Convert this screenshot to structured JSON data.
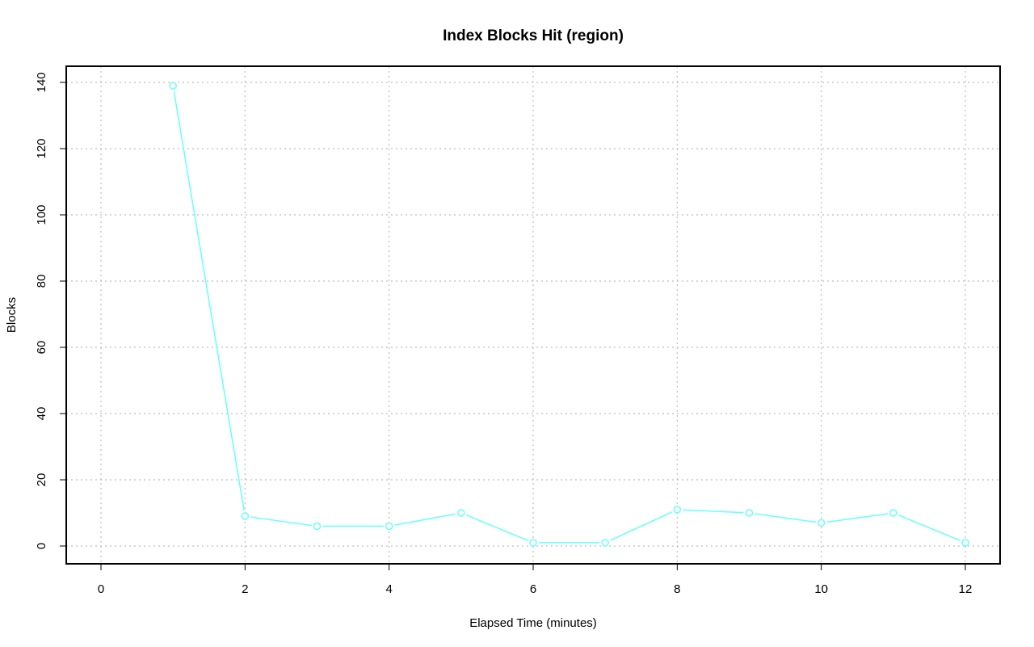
{
  "chart_data": {
    "type": "line",
    "title": "Index Blocks Hit (region)",
    "xlabel": "Elapsed Time (minutes)",
    "ylabel": "Blocks",
    "xlim": [
      0,
      12
    ],
    "ylim": [
      0,
      140
    ],
    "x_ticks": [
      0,
      2,
      4,
      6,
      8,
      10,
      12
    ],
    "y_ticks": [
      0,
      20,
      40,
      60,
      80,
      100,
      120,
      140
    ],
    "grid": true,
    "legend": "none",
    "series": [
      {
        "color": "#66ffff",
        "marker": "open-circle",
        "x": [
          1,
          2,
          3,
          4,
          5,
          6,
          7,
          8,
          9,
          10,
          11,
          12
        ],
        "y": [
          139,
          9,
          6,
          6,
          10,
          1,
          1,
          11,
          10,
          7,
          10,
          1
        ]
      }
    ]
  }
}
